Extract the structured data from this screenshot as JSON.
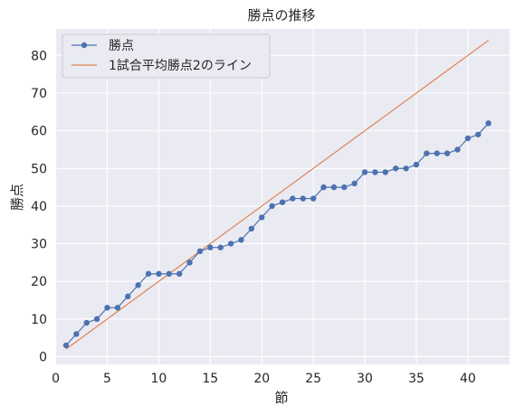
{
  "chart_data": {
    "type": "line",
    "title": "勝点の推移",
    "xlabel": "節",
    "ylabel": "勝点",
    "xlim": [
      -0.05,
      44.05
    ],
    "ylim": [
      -2.05,
      87.05
    ],
    "xticks": [
      0,
      5,
      10,
      15,
      20,
      25,
      30,
      35,
      40
    ],
    "yticks": [
      0,
      10,
      20,
      30,
      40,
      50,
      60,
      70,
      80
    ],
    "grid": true,
    "legend_position": "top-left",
    "series": [
      {
        "name": "勝点",
        "color": "#4c72b0",
        "marker": "circle",
        "x": [
          1,
          2,
          3,
          4,
          5,
          6,
          7,
          8,
          9,
          10,
          11,
          12,
          13,
          14,
          15,
          16,
          17,
          18,
          19,
          20,
          21,
          22,
          23,
          24,
          25,
          26,
          27,
          28,
          29,
          30,
          31,
          32,
          33,
          34,
          35,
          36,
          37,
          38,
          39,
          40,
          41,
          42
        ],
        "y": [
          3,
          6,
          9,
          10,
          13,
          13,
          16,
          19,
          22,
          22,
          22,
          22,
          25,
          28,
          29,
          29,
          30,
          31,
          34,
          37,
          40,
          41,
          42,
          42,
          42,
          45,
          45,
          45,
          46,
          49,
          49,
          49,
          50,
          50,
          51,
          54,
          54,
          54,
          55,
          58,
          59,
          62
        ]
      },
      {
        "name": "1試合平均勝点2のライン",
        "color": "#dd8452",
        "marker": "none",
        "x": [
          1,
          42
        ],
        "y": [
          2,
          84
        ]
      }
    ]
  }
}
